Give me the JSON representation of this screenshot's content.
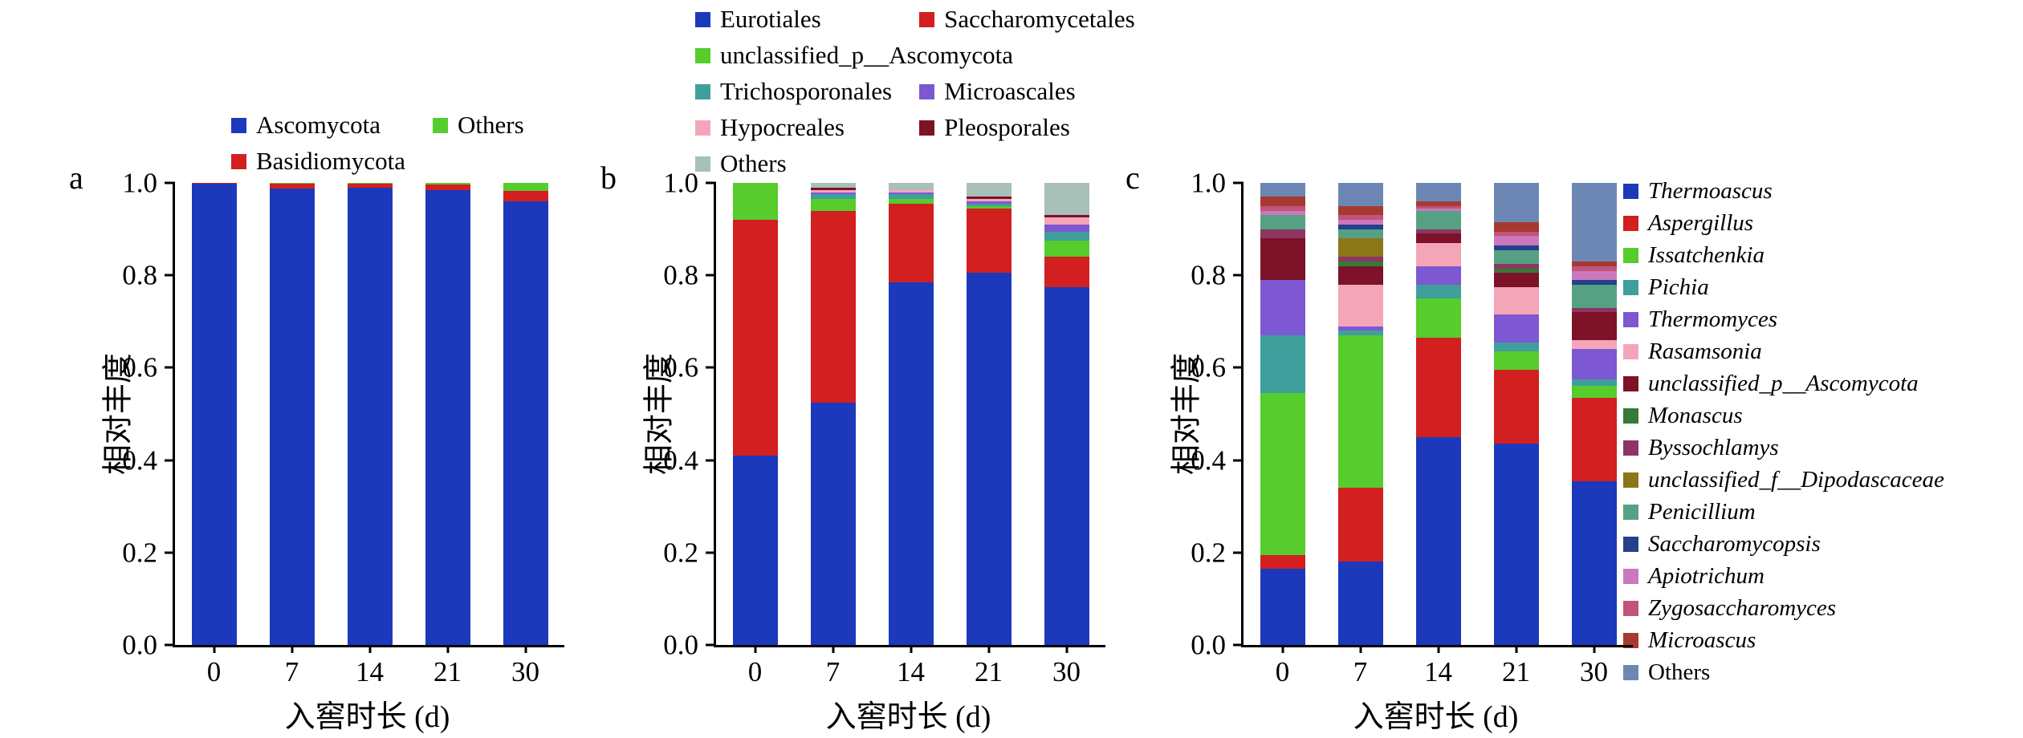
{
  "panel_letters": [
    "a",
    "b",
    "c"
  ],
  "axis": {
    "xlabel": "入窖时长 (d)",
    "ylabel": "相对丰度",
    "yticks": [
      0.0,
      0.2,
      0.4,
      0.6,
      0.8,
      1.0
    ]
  },
  "legends": {
    "a": {
      "position": "top",
      "items": [
        {
          "label": "Ascomycota",
          "color": "#1c39bb"
        },
        {
          "label": "Others",
          "color": "#56cc2d"
        },
        {
          "label": "Basidiomycota",
          "color": "#d21f1f"
        }
      ]
    },
    "b": {
      "position": "top",
      "items": [
        {
          "label": "Eurotiales",
          "color": "#1c39bb"
        },
        {
          "label": "Saccharomycetales",
          "color": "#d21f1f"
        },
        {
          "label": "unclassified_p__Ascomycota",
          "color": "#56cc2d",
          "span": 2
        },
        {
          "label": "Trichosporonales",
          "color": "#3f9f9c"
        },
        {
          "label": "Microascales",
          "color": "#7e57d2"
        },
        {
          "label": "Hypocreales",
          "color": "#f4a6b8"
        },
        {
          "label": "Pleosporales",
          "color": "#7d1228"
        },
        {
          "label": "Others",
          "color": "#a7c0b8",
          "span": 2
        }
      ]
    },
    "c": {
      "position": "right",
      "items": [
        {
          "label": "Thermoascus",
          "color": "#1c39bb"
        },
        {
          "label": "Aspergillus",
          "color": "#d21f1f"
        },
        {
          "label": "Issatchenkia",
          "color": "#56cc2d"
        },
        {
          "label": "Pichia",
          "color": "#3f9f9c"
        },
        {
          "label": "Thermomyces",
          "color": "#7e57d2"
        },
        {
          "label": "Rasamsonia",
          "color": "#f4a6b8"
        },
        {
          "label": "unclassified_p__Ascomycota",
          "color": "#7d1228"
        },
        {
          "label": "Monascus",
          "color": "#357a38"
        },
        {
          "label": "Byssochlamys",
          "color": "#8e3563"
        },
        {
          "label": "unclassified_f__Dipodascaceae",
          "color": "#8c7618"
        },
        {
          "label": "Penicillium",
          "color": "#56a183"
        },
        {
          "label": "Saccharomycopsis",
          "color": "#24418e"
        },
        {
          "label": "Apiotrichum",
          "color": "#ca79bc"
        },
        {
          "label": "Zygosaccharomyces",
          "color": "#c2537a"
        },
        {
          "label": "Microascus",
          "color": "#a63a32"
        },
        {
          "label": "Others",
          "color": "#6d87b5",
          "italic": false
        }
      ]
    }
  },
  "chart_data": [
    {
      "type": "bar",
      "stacked": true,
      "panel": "a",
      "categories": [
        "0",
        "7",
        "14",
        "21",
        "30"
      ],
      "xlabel": "入窖时长 (d)",
      "ylabel": "相对丰度",
      "ylim": [
        0,
        1.0
      ],
      "yticks": [
        0.0,
        0.2,
        0.4,
        0.6,
        0.8,
        1.0
      ],
      "grid": false,
      "legend_position": "top",
      "series": [
        {
          "name": "Ascomycota",
          "color": "#1c39bb",
          "values": [
            0.998,
            0.988,
            0.99,
            0.985,
            0.96
          ]
        },
        {
          "name": "Basidiomycota",
          "color": "#d21f1f",
          "values": [
            0.002,
            0.01,
            0.008,
            0.011,
            0.022
          ]
        },
        {
          "name": "Others",
          "color": "#56cc2d",
          "values": [
            0.0,
            0.002,
            0.002,
            0.004,
            0.018
          ]
        }
      ]
    },
    {
      "type": "bar",
      "stacked": true,
      "panel": "b",
      "categories": [
        "0",
        "7",
        "14",
        "21",
        "30"
      ],
      "xlabel": "入窖时长 (d)",
      "ylabel": "相对丰度",
      "ylim": [
        0,
        1.0
      ],
      "yticks": [
        0.0,
        0.2,
        0.4,
        0.6,
        0.8,
        1.0
      ],
      "grid": false,
      "legend_position": "top",
      "series": [
        {
          "name": "Eurotiales",
          "color": "#1c39bb",
          "values": [
            0.41,
            0.525,
            0.785,
            0.805,
            0.775
          ]
        },
        {
          "name": "Saccharomycetales",
          "color": "#d21f1f",
          "values": [
            0.51,
            0.415,
            0.17,
            0.14,
            0.065
          ]
        },
        {
          "name": "unclassified_p__Ascomycota",
          "color": "#56cc2d",
          "values": [
            0.08,
            0.025,
            0.01,
            0.005,
            0.035
          ]
        },
        {
          "name": "Trichosporonales",
          "color": "#3f9f9c",
          "values": [
            0.0,
            0.01,
            0.01,
            0.005,
            0.02
          ]
        },
        {
          "name": "Microascales",
          "color": "#7e57d2",
          "values": [
            0.0,
            0.005,
            0.005,
            0.005,
            0.015
          ]
        },
        {
          "name": "Hypocreales",
          "color": "#f4a6b8",
          "values": [
            0.0,
            0.005,
            0.005,
            0.005,
            0.015
          ]
        },
        {
          "name": "Pleosporales",
          "color": "#7d1228",
          "values": [
            0.0,
            0.005,
            0.0,
            0.005,
            0.005
          ]
        },
        {
          "name": "Others",
          "color": "#a7c0b8",
          "values": [
            0.0,
            0.01,
            0.015,
            0.03,
            0.07
          ]
        }
      ]
    },
    {
      "type": "bar",
      "stacked": true,
      "panel": "c",
      "categories": [
        "0",
        "7",
        "14",
        "21",
        "30"
      ],
      "xlabel": "入窖时长 (d)",
      "ylabel": "相对丰度",
      "ylim": [
        0,
        1.0
      ],
      "yticks": [
        0.0,
        0.2,
        0.4,
        0.6,
        0.8,
        1.0
      ],
      "grid": false,
      "legend_position": "right",
      "series": [
        {
          "name": "Thermoascus",
          "color": "#1c39bb",
          "values": [
            0.165,
            0.18,
            0.45,
            0.435,
            0.355
          ]
        },
        {
          "name": "Aspergillus",
          "color": "#d21f1f",
          "values": [
            0.03,
            0.16,
            0.215,
            0.16,
            0.18
          ]
        },
        {
          "name": "Issatchenkia",
          "color": "#56cc2d",
          "values": [
            0.35,
            0.33,
            0.085,
            0.04,
            0.025
          ]
        },
        {
          "name": "Pichia",
          "color": "#3f9f9c",
          "values": [
            0.125,
            0.01,
            0.03,
            0.02,
            0.015
          ]
        },
        {
          "name": "Thermomyces",
          "color": "#7e57d2",
          "values": [
            0.12,
            0.01,
            0.04,
            0.06,
            0.065
          ]
        },
        {
          "name": "Rasamsonia",
          "color": "#f4a6b8",
          "values": [
            0.0,
            0.09,
            0.05,
            0.06,
            0.02
          ]
        },
        {
          "name": "unclassified_p__Ascomycota",
          "color": "#7d1228",
          "values": [
            0.09,
            0.04,
            0.02,
            0.03,
            0.06
          ]
        },
        {
          "name": "Monascus",
          "color": "#357a38",
          "values": [
            0.0,
            0.01,
            0.0,
            0.01,
            0.0
          ]
        },
        {
          "name": "Byssochlamys",
          "color": "#8e3563",
          "values": [
            0.02,
            0.01,
            0.01,
            0.01,
            0.01
          ]
        },
        {
          "name": "unclassified_f__Dipodascaceae",
          "color": "#8c7618",
          "values": [
            0.0,
            0.04,
            0.0,
            0.0,
            0.0
          ]
        },
        {
          "name": "Penicillium",
          "color": "#56a183",
          "values": [
            0.03,
            0.02,
            0.04,
            0.03,
            0.05
          ]
        },
        {
          "name": "Saccharomycopsis",
          "color": "#24418e",
          "values": [
            0.0,
            0.01,
            0.0,
            0.01,
            0.01
          ]
        },
        {
          "name": "Apiotrichum",
          "color": "#ca79bc",
          "values": [
            0.01,
            0.01,
            0.005,
            0.02,
            0.02
          ]
        },
        {
          "name": "Zygosaccharomyces",
          "color": "#c2537a",
          "values": [
            0.01,
            0.01,
            0.005,
            0.01,
            0.01
          ]
        },
        {
          "name": "Microascus",
          "color": "#a63a32",
          "values": [
            0.02,
            0.02,
            0.01,
            0.02,
            0.01
          ]
        },
        {
          "name": "Others",
          "color": "#6d87b5",
          "values": [
            0.03,
            0.05,
            0.04,
            0.085,
            0.17
          ]
        }
      ]
    }
  ]
}
